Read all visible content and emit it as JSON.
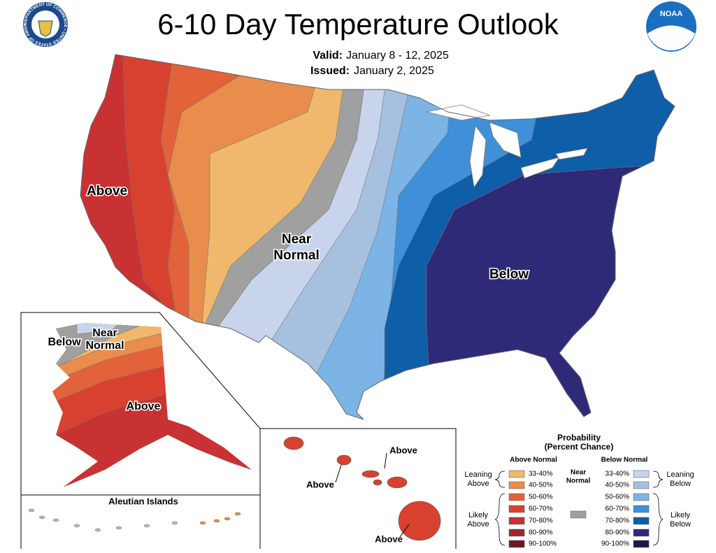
{
  "header": {
    "title": "6-10 Day Temperature Outlook",
    "valid": {
      "label": "Valid:",
      "value": "January 8 - 12, 2025"
    },
    "issued": {
      "label": "Issued:",
      "value": "January 2, 2025"
    }
  },
  "logos": {
    "commerce": "DEPARTMENT OF COMMERCE • UNITED STATES OF AMERICA",
    "noaa": "NOAA"
  },
  "conus": {
    "above": "Above",
    "near_normal": [
      "Near",
      "Normal"
    ],
    "below": "Below"
  },
  "alaska": {
    "below": "Below",
    "near_normal": [
      "Near",
      "Normal"
    ],
    "above": "Above",
    "aleutian": "Aleutian Islands"
  },
  "hawaii": {
    "labels": [
      "Above",
      "Above",
      "Above"
    ]
  },
  "legend": {
    "title": [
      "Probability",
      "(Percent Chance)"
    ],
    "above_header": "Above Normal",
    "below_header": "Below Normal",
    "near_normal": {
      "label": [
        "Near",
        "Normal"
      ],
      "color": "#a0a0a0"
    },
    "above": [
      {
        "range": "33-40%",
        "color": "#f0b86c"
      },
      {
        "range": "40-50%",
        "color": "#e98d4c"
      },
      {
        "range": "50-60%",
        "color": "#e2623a"
      },
      {
        "range": "60-70%",
        "color": "#d8412f"
      },
      {
        "range": "70-80%",
        "color": "#c83232"
      },
      {
        "range": "80-90%",
        "color": "#9a2a32"
      },
      {
        "range": "90-100%",
        "color": "#6a1a20"
      }
    ],
    "below": [
      {
        "range": "33-40%",
        "color": "#c8d4ec"
      },
      {
        "range": "40-50%",
        "color": "#a6c0e0"
      },
      {
        "range": "50-60%",
        "color": "#7db4e6"
      },
      {
        "range": "60-70%",
        "color": "#3f90d8"
      },
      {
        "range": "70-80%",
        "color": "#0f5ea8"
      },
      {
        "range": "80-90%",
        "color": "#2e2a78"
      },
      {
        "range": "90-100%",
        "color": "#1c1a4c"
      }
    ],
    "groups": {
      "leaning_above": [
        "Leaning",
        "Above"
      ],
      "likely_above": [
        "Likely",
        "Above"
      ],
      "leaning_below": [
        "Leaning",
        "Below"
      ],
      "likely_below": [
        "Likely",
        "Below"
      ]
    }
  }
}
